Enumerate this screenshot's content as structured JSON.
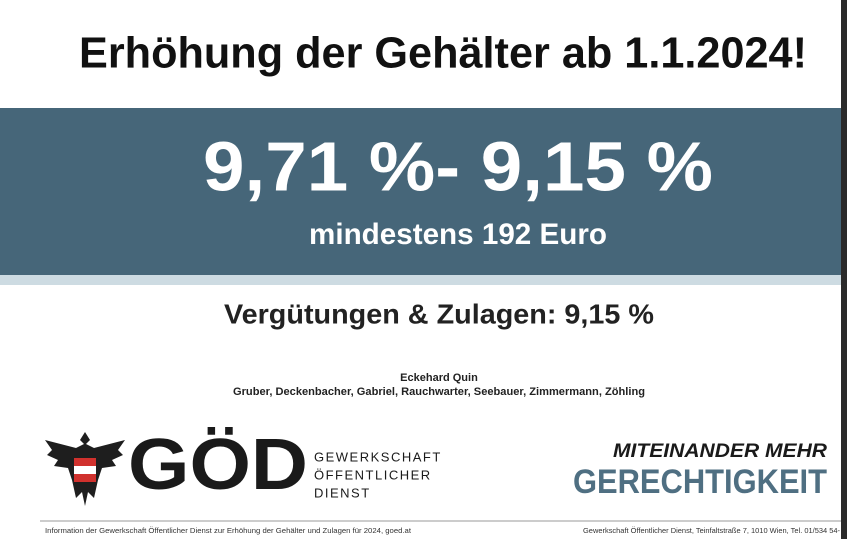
{
  "header": {
    "title": "Erhöhung der Gehälter ab 1.1.2024!"
  },
  "banner": {
    "headline": "9,71 %- 9,15 %",
    "subline": "mindestens 192 Euro"
  },
  "section": {
    "text": "Vergütungen & Zulagen: 9,15 %"
  },
  "names": {
    "line1": "Eckehard Quin",
    "line2": "Gruber, Deckenbacher, Gabriel, Rauchwarter, Seebauer, Zimmermann, Zöhling"
  },
  "logo": {
    "mark": "GÖD",
    "lines": [
      "GEWERKSCHAFT",
      "ÖFFENTLICHER",
      "DIENST"
    ]
  },
  "slogan": {
    "line1": "MITEINANDER MEHR",
    "line2": "GERECHTIGKEIT"
  },
  "footer": {
    "left": "Information der Gewerkschaft Öffentlicher Dienst zur Erhöhung der Gehälter und Zulagen für 2024, goed.at",
    "right": "Gewerkschaft Öffentlicher Dienst, Teinfaltstraße 7, 1010 Wien, Tel. 01/534 54-"
  }
}
